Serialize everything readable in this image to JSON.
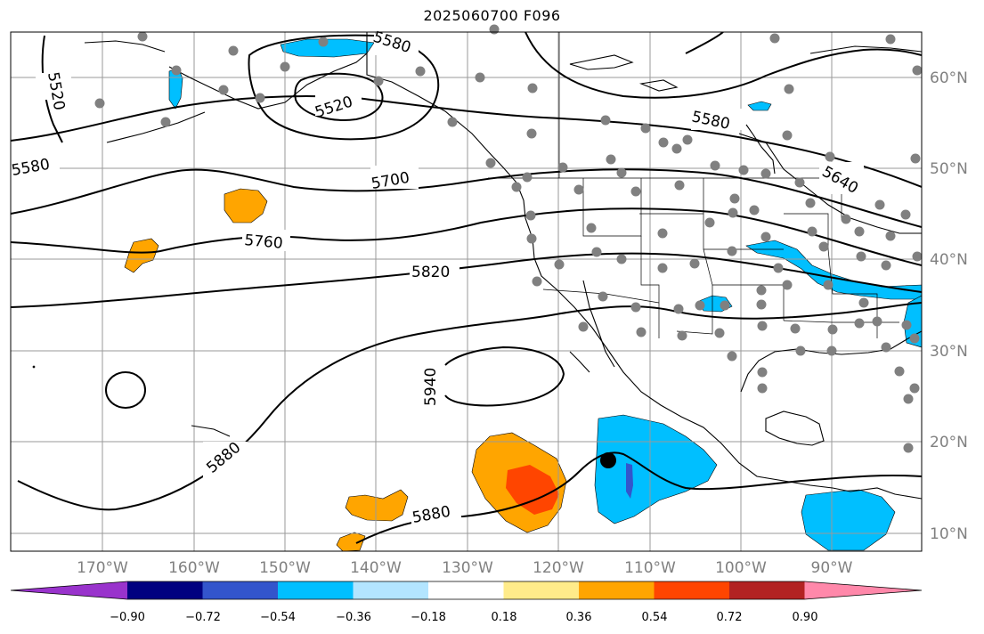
{
  "title": "2025060700 F096",
  "lon_ticks": [
    "170°W",
    "160°W",
    "150°W",
    "140°W",
    "130°W",
    "120°W",
    "110°W",
    "100°W",
    "90°W"
  ],
  "lat_ticks": [
    "60°N",
    "50°N",
    "40°N",
    "30°N",
    "20°N",
    "10°N"
  ],
  "contour_labels": [
    "5520",
    "5580",
    "5520",
    "5580",
    "5580",
    "5640",
    "5700",
    "5760",
    "5820",
    "5880",
    "5880",
    "5940"
  ],
  "colorbar": {
    "ticks": [
      "−0.90",
      "−0.72",
      "−0.54",
      "−0.36",
      "−0.18",
      "0.18",
      "0.36",
      "0.54",
      "0.72",
      "0.90"
    ],
    "colors": [
      "#9933cc",
      "#000080",
      "#3355cc",
      "#00bfff",
      "#b3e5ff",
      "#ffffff",
      "#ffeb8a",
      "#ffa500",
      "#ff4500",
      "#b22222",
      "#ff88aa"
    ]
  },
  "field_colors": {
    "neg_light": "#b3e5ff",
    "neg_mid": "#00bfff",
    "neg_dark": "#3355cc",
    "pos_mid": "#ffa500",
    "pos_strong": "#ff4500",
    "station": "#808080",
    "storm_marker": "#000000"
  }
}
